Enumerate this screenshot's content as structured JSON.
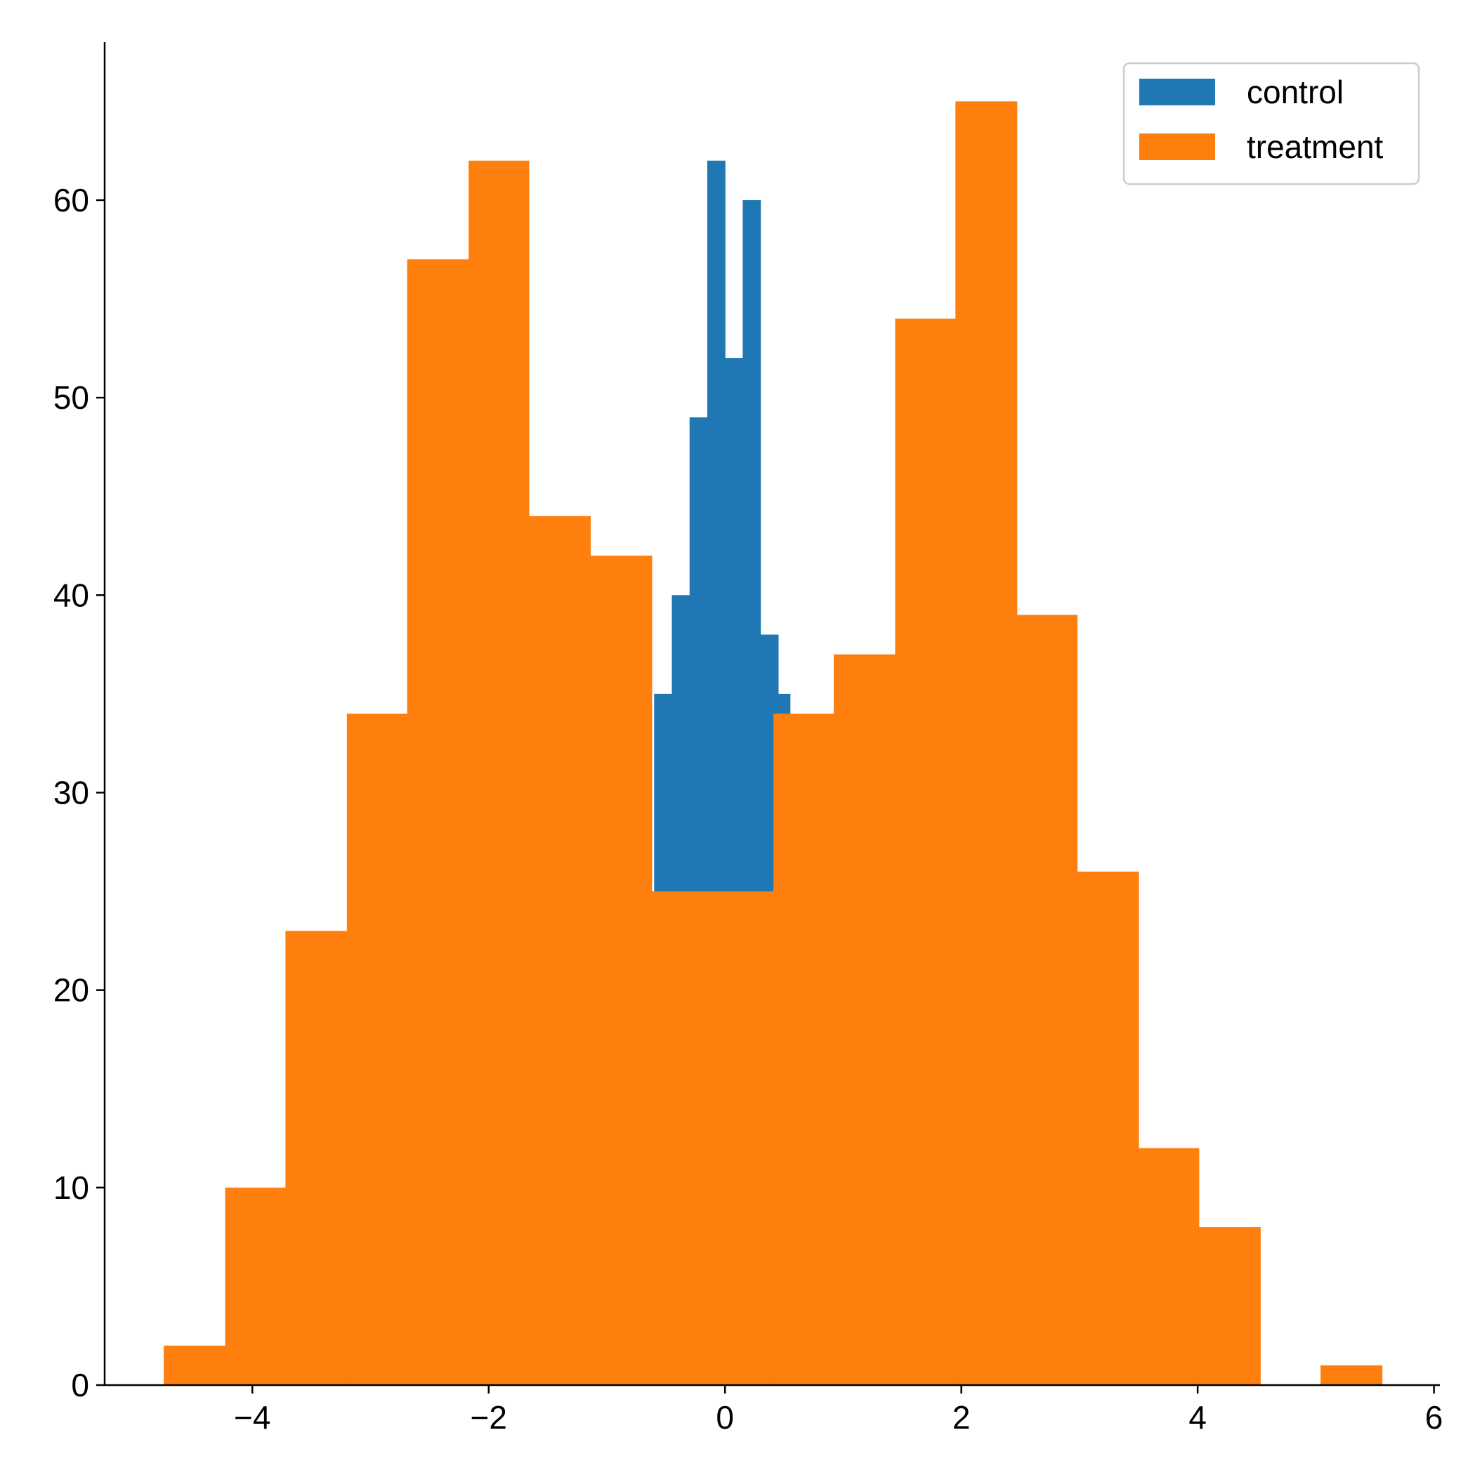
{
  "chart_data": {
    "type": "bar",
    "subtype": "histogram",
    "title": "",
    "xlabel": "",
    "ylabel": "",
    "xlim": [
      -5.25,
      6.05
    ],
    "ylim": [
      0,
      68
    ],
    "xticks": [
      -4,
      -2,
      0,
      2,
      4,
      6
    ],
    "xtick_labels": [
      "−4",
      "−2",
      "0",
      "2",
      "4",
      "6"
    ],
    "yticks": [
      0,
      10,
      20,
      30,
      40,
      50,
      60
    ],
    "ytick_labels": [
      "0",
      "10",
      "20",
      "30",
      "40",
      "50",
      "60"
    ],
    "grid": false,
    "legend_position": "top-right",
    "series": [
      {
        "name": "control",
        "color": "#1f77b4",
        "bin_edges": [
          -0.6,
          -0.45,
          -0.3,
          -0.15,
          0.0,
          0.15,
          0.3,
          0.45,
          0.55
        ],
        "counts": [
          35,
          40,
          49,
          62,
          52,
          60,
          38,
          35
        ]
      },
      {
        "name": "treatment",
        "color": "#ff7f0e",
        "bin_edges": [
          -4.75,
          -4.23,
          -3.72,
          -3.2,
          -2.69,
          -2.17,
          -1.66,
          -1.14,
          -0.62,
          -0.11,
          0.41,
          0.92,
          1.44,
          1.95,
          2.47,
          2.98,
          3.5,
          4.01,
          4.53,
          5.04,
          5.56
        ],
        "counts": [
          2,
          10,
          23,
          34,
          57,
          62,
          44,
          42,
          25,
          25,
          34,
          37,
          54,
          65,
          39,
          26,
          12,
          8,
          0,
          1
        ]
      }
    ]
  }
}
